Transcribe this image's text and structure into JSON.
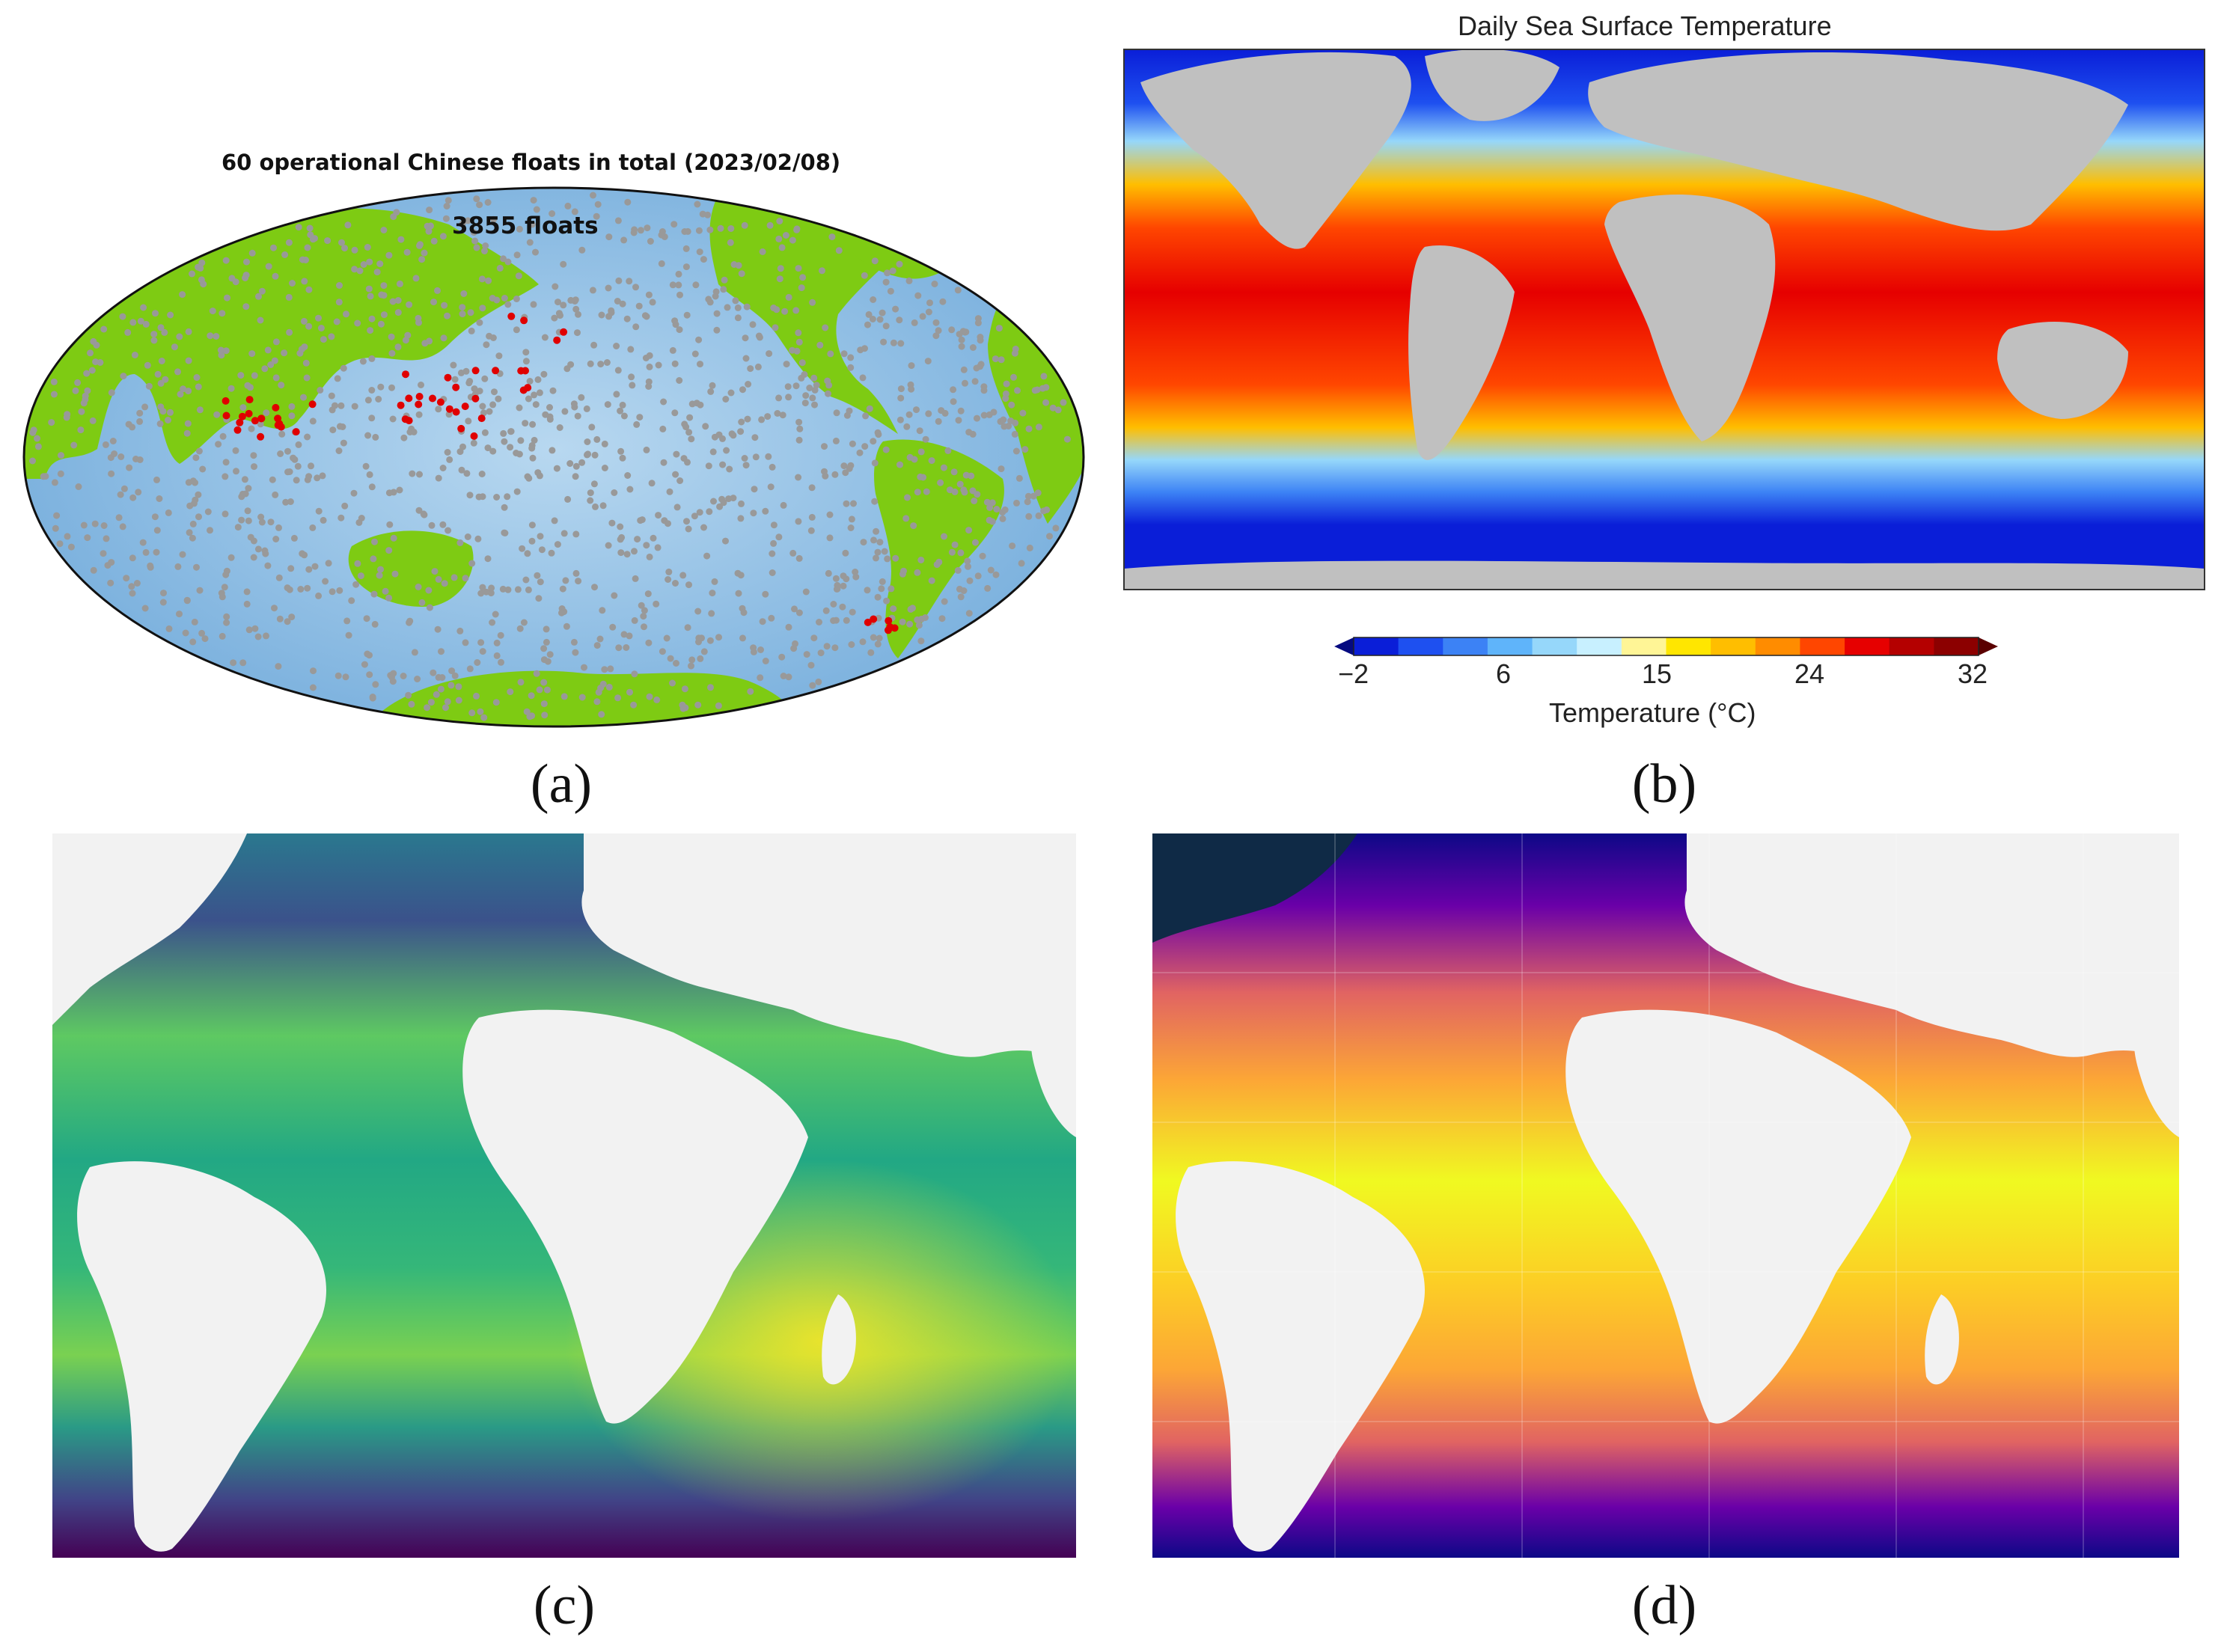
{
  "panels": {
    "a": {
      "caption": "(a)",
      "title": "60 operational Chinese floats in total (2023/02/08)",
      "count_label": "3855 floats",
      "colors": {
        "land": "#7ecb13",
        "ocean": "#8dbfe3",
        "float": "#999999",
        "chinese_float": "#e00000"
      }
    },
    "b": {
      "caption": "(b)",
      "title": "Daily Sea Surface Temperature",
      "colorbar": {
        "ticks": [
          "−2",
          "6",
          "15",
          "24",
          "32"
        ],
        "label": "Temperature (°C)",
        "colors": [
          "#0a1ed8",
          "#1e50f0",
          "#3c82f5",
          "#5fb4fa",
          "#96d7fa",
          "#c8f0ff",
          "#fff596",
          "#ffe600",
          "#ffbe00",
          "#ff8c00",
          "#ff4600",
          "#e60000",
          "#b40000",
          "#8c0000"
        ]
      },
      "colors": {
        "land": "#c0c0c0"
      }
    },
    "c": {
      "caption": "(c)",
      "colormap": "viridis",
      "colors": {
        "land": "#f2f2f2"
      }
    },
    "d": {
      "caption": "(d)",
      "colormap": "plasma",
      "colors": {
        "land": "#f2f2f2"
      }
    }
  }
}
